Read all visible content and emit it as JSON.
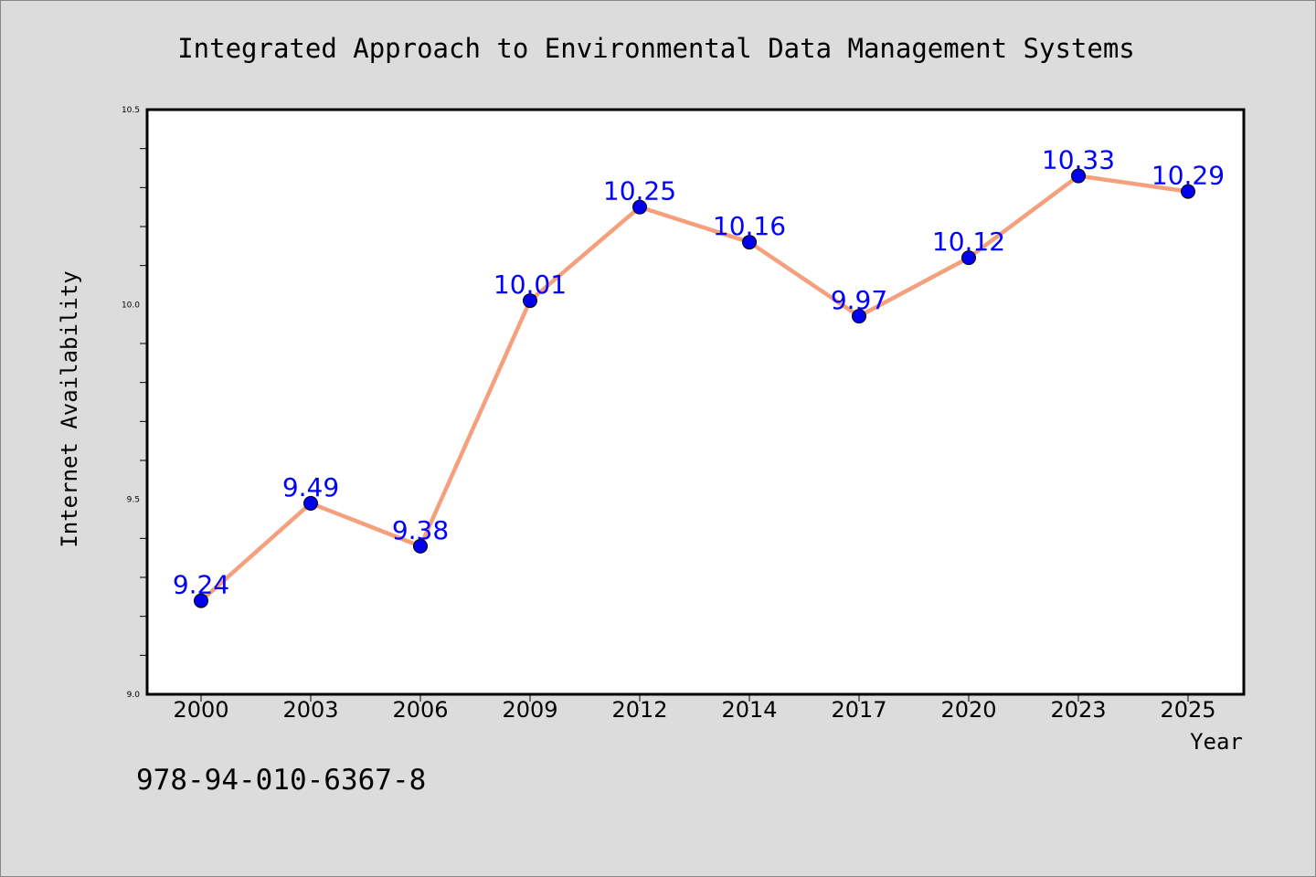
{
  "chart_data": {
    "type": "line",
    "title": "Integrated Approach to Environmental Data Management Systems",
    "xlabel": "Year",
    "ylabel": "Internet Availability",
    "categories": [
      "2000",
      "2003",
      "2006",
      "2009",
      "2012",
      "2014",
      "2017",
      "2020",
      "2023",
      "2025"
    ],
    "series": [
      {
        "values": [
          9.24,
          9.49,
          9.38,
          10.01,
          10.25,
          10.16,
          9.97,
          10.12,
          10.33,
          10.29
        ],
        "labels": [
          "9.24",
          "9.49",
          "9.38",
          "10.01",
          "10.25",
          "10.16",
          "9.97",
          "10.12",
          "10.33",
          "10.29"
        ]
      }
    ],
    "ylim": [
      9.0,
      10.5
    ],
    "y_ticks": [
      "9.0",
      "9.5",
      "10.0",
      "10.5"
    ],
    "grid": false,
    "colors": {
      "line": "#f4a07c",
      "marker": "#0000ee",
      "data_label": "#0000ff",
      "background": "#dcdcdc",
      "plot_background": "#ffffff"
    }
  },
  "footer_text": "978-94-010-6367-8"
}
